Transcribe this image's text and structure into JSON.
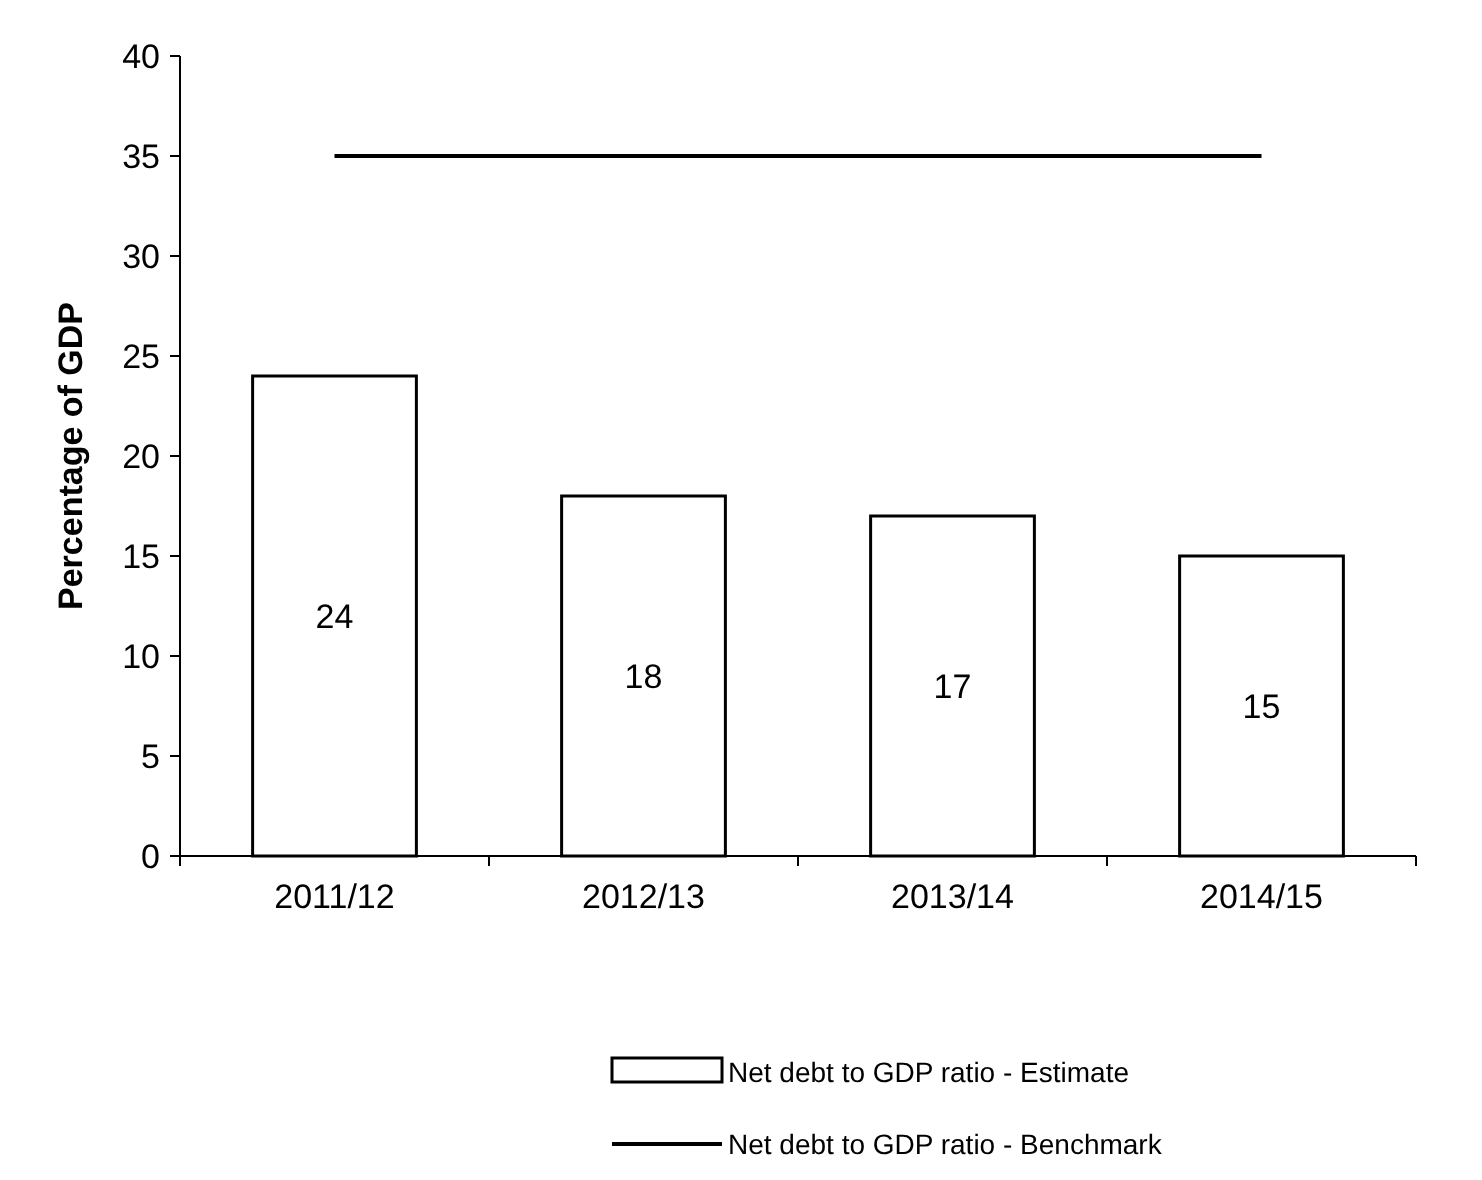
{
  "chart_data": {
    "type": "bar",
    "ylabel": "Percentage of GDP",
    "categories": [
      "2011/12",
      "2012/13",
      "2013/14",
      "2014/15"
    ],
    "series": [
      {
        "name": "Net debt to GDP ratio - Estimate",
        "color": "#ffffff",
        "values": [
          24,
          18,
          17,
          15
        ],
        "value_labels": [
          "24",
          "18",
          "17",
          "15"
        ]
      },
      {
        "name": "Net debt to GDP ratio - Benchmark",
        "type": "line",
        "color": "#000000",
        "values": [
          35,
          35,
          35,
          35
        ]
      }
    ],
    "ylim": [
      0,
      40
    ],
    "yticks": [
      0,
      5,
      10,
      15,
      20,
      25,
      30,
      35,
      40
    ],
    "grid": false,
    "legend": "bottom"
  }
}
